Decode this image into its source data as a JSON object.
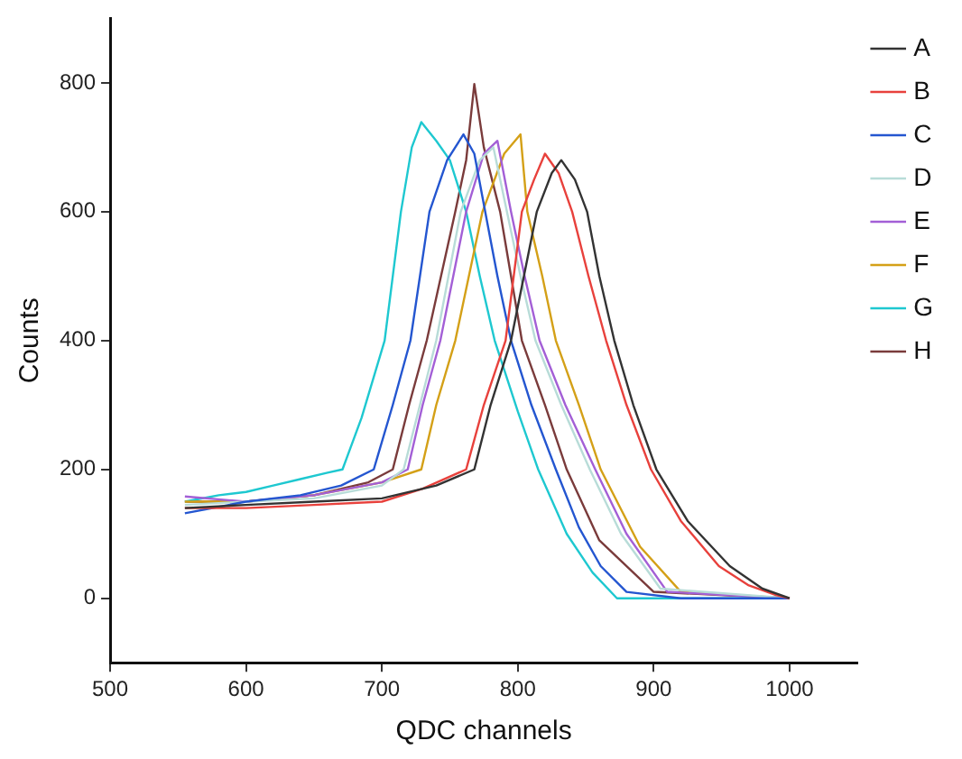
{
  "chart_data": {
    "type": "line",
    "xlabel": "QDC channels",
    "ylabel": "Counts",
    "xlim": [
      500,
      1050
    ],
    "xticks": [
      500,
      600,
      700,
      800,
      900,
      1000
    ],
    "ylim": [
      -100,
      900
    ],
    "yticks": [
      0,
      200,
      400,
      600,
      800
    ],
    "grid": false,
    "legend": "top right",
    "marker": "none",
    "line_style": "solid",
    "series": [
      {
        "name": "A",
        "color": "#333333",
        "x": [
          555,
          600,
          650,
          700,
          740,
          768,
          780,
          795,
          814,
          825,
          832,
          842,
          851,
          860,
          871,
          885,
          902,
          925,
          956,
          980,
          1000
        ],
        "values": [
          140,
          145,
          150,
          155,
          175,
          200,
          300,
          400,
          600,
          660,
          680,
          650,
          600,
          500,
          400,
          300,
          200,
          120,
          50,
          15,
          0
        ]
      },
      {
        "name": "B",
        "color": "#e8413c",
        "x": [
          555,
          600,
          650,
          700,
          730,
          762,
          775,
          791,
          803,
          812,
          820,
          830,
          840,
          852,
          865,
          880,
          898,
          920,
          948,
          970,
          990,
          1000
        ],
        "values": [
          140,
          140,
          145,
          150,
          170,
          200,
          300,
          400,
          600,
          650,
          690,
          660,
          600,
          500,
          400,
          300,
          200,
          120,
          50,
          20,
          5,
          0
        ]
      },
      {
        "name": "C",
        "color": "#2456d0",
        "x": [
          555,
          600,
          640,
          670,
          694,
          708,
          721,
          735,
          748,
          760,
          768,
          776,
          785,
          795,
          810,
          828,
          845,
          861,
          880,
          920,
          1000
        ],
        "values": [
          132,
          150,
          160,
          175,
          200,
          300,
          400,
          600,
          680,
          720,
          690,
          600,
          500,
          400,
          300,
          200,
          110,
          50,
          10,
          0,
          0
        ]
      },
      {
        "name": "D",
        "color": "#b8dcd8",
        "x": [
          555,
          600,
          650,
          700,
          716,
          728,
          740,
          758,
          772,
          782,
          792,
          802,
          813,
          832,
          853,
          876,
          905,
          1000
        ],
        "values": [
          145,
          150,
          155,
          175,
          200,
          300,
          400,
          600,
          680,
          700,
          600,
          500,
          400,
          300,
          200,
          100,
          15,
          0
        ]
      },
      {
        "name": "E",
        "color": "#a35fd6",
        "x": [
          555,
          600,
          650,
          700,
          719,
          730,
          743,
          762,
          775,
          785,
          795,
          805,
          816,
          835,
          857,
          880,
          910,
          1000
        ],
        "values": [
          158,
          150,
          160,
          180,
          200,
          300,
          400,
          600,
          690,
          710,
          600,
          500,
          400,
          300,
          200,
          100,
          10,
          0
        ]
      },
      {
        "name": "F",
        "color": "#d4a017",
        "x": [
          555,
          600,
          650,
          700,
          729,
          740,
          754,
          774,
          790,
          802,
          807,
          818,
          828,
          845,
          861,
          890,
          920,
          1000
        ],
        "values": [
          150,
          150,
          160,
          180,
          200,
          300,
          400,
          600,
          690,
          720,
          600,
          500,
          400,
          300,
          200,
          80,
          10,
          0
        ]
      },
      {
        "name": "G",
        "color": "#1ec8d0",
        "x": [
          555,
          580,
          600,
          620,
          640,
          660,
          671,
          685,
          702,
          714,
          722,
          729,
          740,
          750,
          762,
          772,
          783,
          800,
          815,
          836,
          855,
          873,
          900,
          950,
          1000
        ],
        "values": [
          150,
          160,
          165,
          175,
          185,
          195,
          200,
          280,
          400,
          600,
          700,
          739,
          710,
          680,
          600,
          500,
          400,
          290,
          200,
          100,
          40,
          0,
          0,
          0,
          0
        ]
      },
      {
        "name": "H",
        "color": "#7a3b3b",
        "x": [
          555,
          600,
          650,
          690,
          708,
          720,
          733,
          754,
          762,
          768,
          775,
          787,
          795,
          803,
          820,
          836,
          860,
          900,
          1000
        ],
        "values": [
          150,
          150,
          160,
          180,
          200,
          300,
          400,
          600,
          680,
          798,
          700,
          600,
          500,
          400,
          300,
          200,
          90,
          10,
          0
        ]
      }
    ]
  }
}
